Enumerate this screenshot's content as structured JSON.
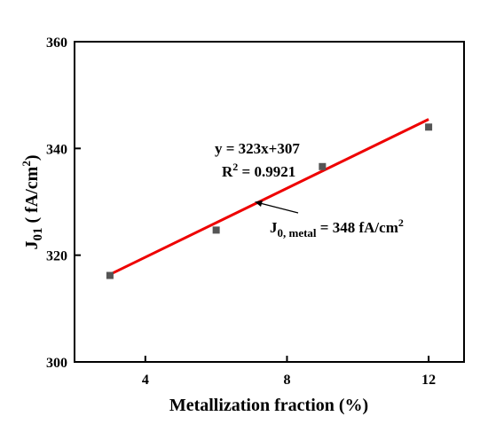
{
  "chart_data": {
    "type": "scatter",
    "title": "",
    "xlabel": "Metallization fraction (%)",
    "ylabel_main": "J",
    "ylabel_sub": "01",
    "ylabel_rest": " ( fA/cm",
    "ylabel_sup": "2",
    "ylabel_end": ")",
    "xlim": [
      2,
      13
    ],
    "ylim": [
      300,
      360
    ],
    "xticks": [
      4,
      8,
      12
    ],
    "yticks": [
      300,
      320,
      340,
      360
    ],
    "grid": false,
    "series": [
      {
        "marker": "square",
        "color": "#555555",
        "x": [
          3,
          6,
          9,
          12
        ],
        "y": [
          316.2,
          324.7,
          336.6,
          344.0
        ]
      }
    ],
    "fit_line": {
      "color": "#ee0000",
      "slope": 3.23,
      "intercept": 306.7,
      "x_range": [
        3,
        12
      ]
    },
    "annotations": {
      "equation": "y = 323x+307",
      "r2_prefix": "R",
      "r2_sup": "2",
      "r2_value": " = 0.9921",
      "j0_main": "J",
      "j0_sub": "0, metal",
      "j0_value": " = 348 fA/cm",
      "j0_sup": "2"
    }
  }
}
